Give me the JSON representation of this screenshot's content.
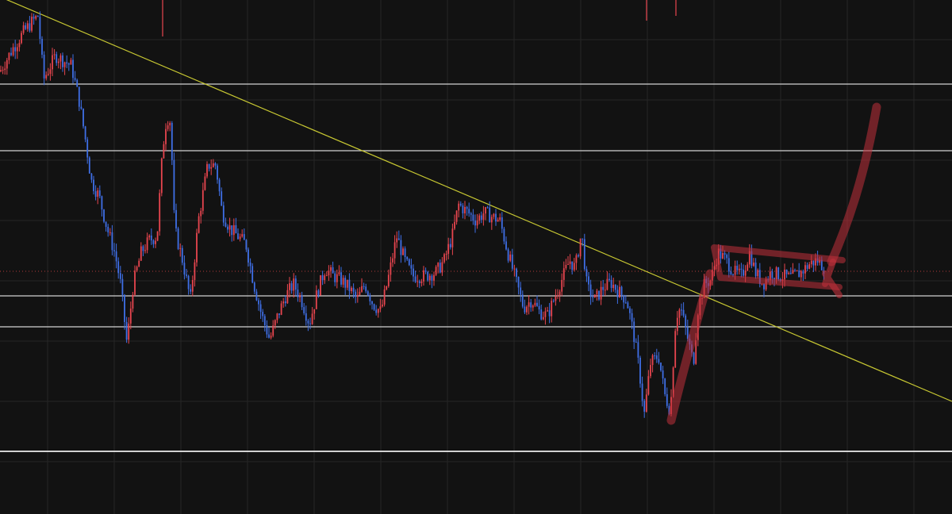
{
  "chart_data": {
    "type": "candlestick",
    "title": "",
    "xlabel": "",
    "ylabel": "",
    "grid": true,
    "legend": "none",
    "ylim": [
      0,
      648
    ],
    "colors": {
      "background": "#121212",
      "grid": "#262626",
      "up": "#e8454f",
      "down": "#3f6fe6",
      "horizontal_level": "#e6e6e6",
      "trendline": "#c8c832",
      "current_price": "#b03a3a",
      "drawing": "#c0303a"
    },
    "horizontal_levels": [
      542,
      458,
      275,
      236,
      79
    ],
    "current_price_level": 306,
    "trendline": {
      "from": [
        0,
        652
      ],
      "to": [
        1200,
        142
      ]
    },
    "price_path": [
      [
        0,
        558
      ],
      [
        15,
        585
      ],
      [
        30,
        608
      ],
      [
        40,
        620
      ],
      [
        48,
        628
      ],
      [
        55,
        548
      ],
      [
        70,
        578
      ],
      [
        90,
        565
      ],
      [
        100,
        520
      ],
      [
        108,
        470
      ],
      [
        115,
        420
      ],
      [
        125,
        400
      ],
      [
        135,
        360
      ],
      [
        145,
        328
      ],
      [
        152,
        290
      ],
      [
        160,
        215
      ],
      [
        168,
        290
      ],
      [
        178,
        330
      ],
      [
        188,
        345
      ],
      [
        198,
        350
      ],
      [
        205,
        460
      ],
      [
        210,
        500
      ],
      [
        215,
        495
      ],
      [
        220,
        360
      ],
      [
        230,
        320
      ],
      [
        240,
        270
      ],
      [
        250,
        370
      ],
      [
        262,
        440
      ],
      [
        272,
        440
      ],
      [
        280,
        380
      ],
      [
        290,
        360
      ],
      [
        300,
        350
      ],
      [
        310,
        340
      ],
      [
        320,
        290
      ],
      [
        330,
        250
      ],
      [
        340,
        220
      ],
      [
        350,
        250
      ],
      [
        360,
        275
      ],
      [
        370,
        290
      ],
      [
        380,
        270
      ],
      [
        390,
        240
      ],
      [
        400,
        280
      ],
      [
        410,
        310
      ],
      [
        420,
        300
      ],
      [
        430,
        295
      ],
      [
        440,
        285
      ],
      [
        450,
        270
      ],
      [
        460,
        290
      ],
      [
        470,
        265
      ],
      [
        480,
        255
      ],
      [
        490,
        300
      ],
      [
        500,
        350
      ],
      [
        510,
        320
      ],
      [
        520,
        300
      ],
      [
        535,
        300
      ],
      [
        550,
        305
      ],
      [
        560,
        320
      ],
      [
        570,
        350
      ],
      [
        578,
        390
      ],
      [
        590,
        380
      ],
      [
        600,
        370
      ],
      [
        610,
        380
      ],
      [
        620,
        375
      ],
      [
        630,
        370
      ],
      [
        640,
        330
      ],
      [
        650,
        295
      ],
      [
        660,
        260
      ],
      [
        670,
        270
      ],
      [
        680,
        255
      ],
      [
        690,
        250
      ],
      [
        700,
        275
      ],
      [
        710,
        300
      ],
      [
        718,
        320
      ],
      [
        725,
        310
      ],
      [
        733,
        355
      ],
      [
        740,
        285
      ],
      [
        750,
        270
      ],
      [
        760,
        285
      ],
      [
        770,
        292
      ],
      [
        780,
        280
      ],
      [
        790,
        270
      ],
      [
        800,
        220
      ],
      [
        806,
        180
      ],
      [
        812,
        125
      ],
      [
        820,
        190
      ],
      [
        830,
        200
      ],
      [
        838,
        150
      ],
      [
        845,
        130
      ],
      [
        852,
        250
      ],
      [
        858,
        260
      ],
      [
        866,
        225
      ],
      [
        874,
        190
      ],
      [
        880,
        260
      ],
      [
        888,
        290
      ],
      [
        896,
        295
      ],
      [
        905,
        330
      ],
      [
        915,
        320
      ],
      [
        925,
        305
      ],
      [
        935,
        300
      ],
      [
        945,
        330
      ],
      [
        952,
        305
      ],
      [
        962,
        290
      ],
      [
        972,
        305
      ],
      [
        985,
        300
      ],
      [
        997,
        298
      ],
      [
        1010,
        305
      ],
      [
        1020,
        315
      ],
      [
        1030,
        320
      ],
      [
        1040,
        310
      ]
    ],
    "wicks": [
      {
        "x": 205,
        "y1": 602,
        "y2": 648
      },
      {
        "x": 815,
        "y1": 622,
        "y2": 648
      },
      {
        "x": 852,
        "y1": 628,
        "y2": 648
      }
    ],
    "annotations": {
      "drawing_color": "#c0303a"
    }
  }
}
